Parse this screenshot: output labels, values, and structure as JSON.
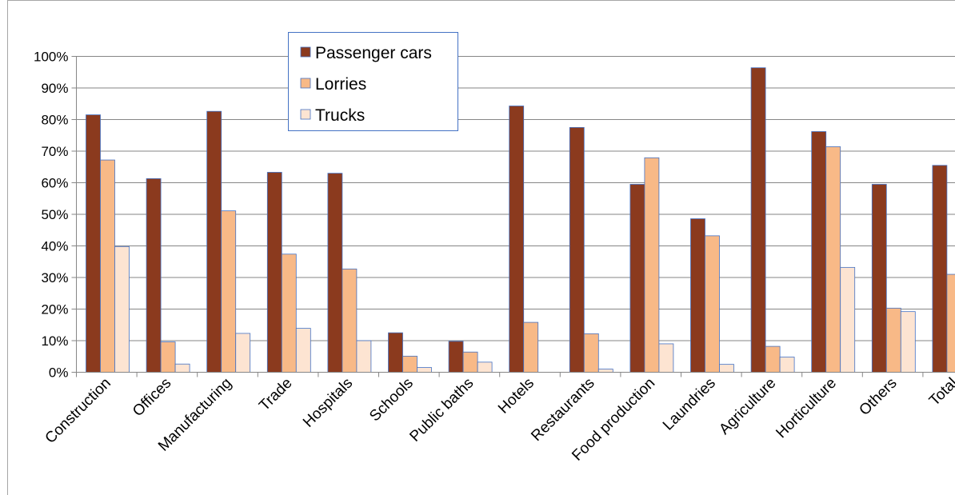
{
  "chart_data": {
    "type": "bar",
    "title": "",
    "xlabel": "",
    "ylabel": "",
    "ylim": [
      0,
      100
    ],
    "ytick_step": 10,
    "ytick_suffix": "%",
    "grid": true,
    "legend_position": "top-center",
    "categories": [
      "Construction",
      "Offices",
      "Manufacturing",
      "Trade",
      "Hospitals",
      "Schools",
      "Public baths",
      "Hotels",
      "Restaurants",
      "Food production",
      "Laundries",
      "Agriculture",
      "Horticulture",
      "Others",
      "Total"
    ],
    "series": [
      {
        "name": "Passenger cars",
        "color": "#8B3A1E",
        "values": [
          81.5,
          61.3,
          82.6,
          63.3,
          63.0,
          12.5,
          9.8,
          84.3,
          77.5,
          59.5,
          48.6,
          96.4,
          76.2,
          59.5,
          65.5
        ]
      },
      {
        "name": "Lorries",
        "color": "#F8B987",
        "values": [
          67.2,
          9.6,
          51.1,
          37.4,
          32.7,
          5.1,
          6.4,
          15.8,
          12.2,
          67.9,
          43.2,
          8.2,
          71.4,
          20.3,
          31.0
        ]
      },
      {
        "name": "Trucks",
        "color": "#FDE4D2",
        "values": [
          39.8,
          2.6,
          12.3,
          13.9,
          10.0,
          1.5,
          3.2,
          0,
          1.0,
          9.0,
          2.5,
          4.8,
          33.2,
          19.2,
          0
        ]
      }
    ]
  }
}
